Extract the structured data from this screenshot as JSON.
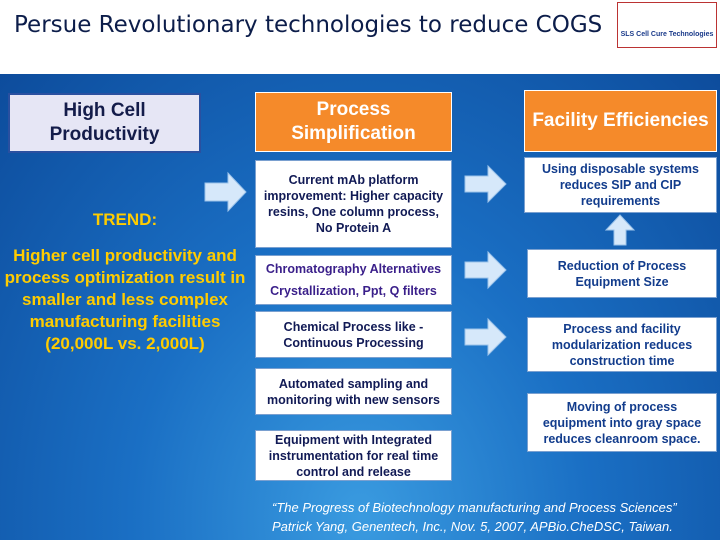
{
  "header": {
    "title": "Persue  Revolutionary technologies to reduce COGS",
    "logo_text": "SLS Cell Cure Technologies"
  },
  "columns": [
    {
      "heading": "High Cell Productivity"
    },
    {
      "heading": "Process Simplification",
      "items": [
        "Current mAb platform improvement: Higher capacity resins, One column process, No Protein A",
        "Chromatography Alternatives",
        "Crystallization, Ppt, Q filters",
        "Chemical Process like - Continuous Processing",
        "Automated sampling and monitoring with new sensors",
        "Equipment with Integrated instrumentation for real time control and release"
      ]
    },
    {
      "heading": "Facility Efficiencies",
      "items": [
        "Using disposable systems reduces SIP and CIP requirements",
        "Reduction of Process Equipment Size",
        "Process and facility modularization reduces construction time",
        "Moving of process equipment into gray space reduces cleanroom space."
      ]
    }
  ],
  "trend": {
    "label": "TREND:",
    "text": "Higher cell productivity and process optimization result in smaller and less complex manufacturing facilities (20,000L vs. 2,000L)"
  },
  "citation": [
    "“The Progress of Biotechnology manufacturing and  Process Sciences”",
    "Patrick Yang, Genentech, Inc., Nov. 5, 2007, APBio.CheDSC, Taiwan."
  ]
}
